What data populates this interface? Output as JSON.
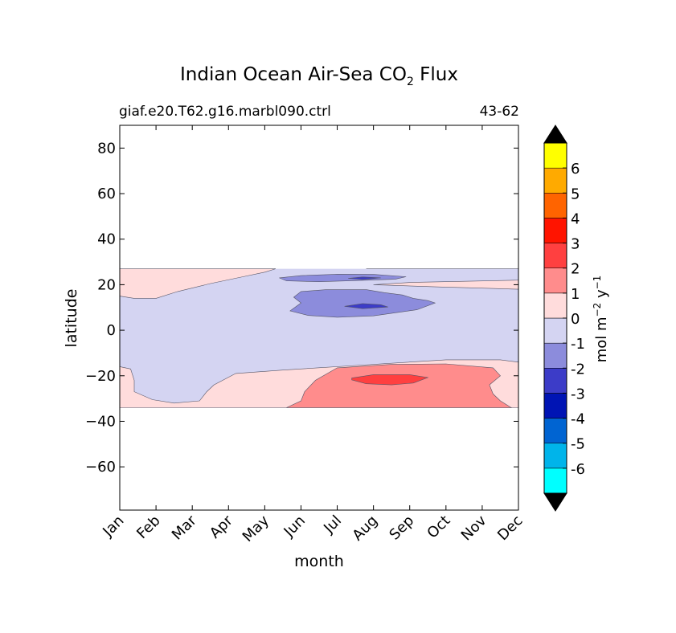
{
  "chart_data": {
    "type": "heatmap",
    "title_main": "Indian Ocean Air-Sea CO",
    "title_sub": "2",
    "title_tail": " Flux",
    "subtitle_left": "giaf.e20.T62.g16.marbl090.ctrl",
    "subtitle_right": "43-62",
    "xlabel": "month",
    "ylabel": "latitude",
    "x_ticks": [
      "Jan",
      "Feb",
      "Mar",
      "Apr",
      "May",
      "Jun",
      "Jul",
      "Aug",
      "Sep",
      "Oct",
      "Nov",
      "Dec"
    ],
    "x_range": [
      1,
      12
    ],
    "y_ticks": [
      80,
      60,
      40,
      20,
      0,
      -20,
      -40,
      -60
    ],
    "y_tick_labels": [
      "80",
      "60",
      "40",
      "20",
      "0",
      "−20",
      "−40",
      "−60"
    ],
    "ylim": [
      -79,
      90
    ],
    "data_lat_range": [
      -34,
      27
    ],
    "colorbar": {
      "label_main": "mol m",
      "label_exp1": "−2",
      "label_mid": "  y",
      "label_exp2": "−1",
      "extend": "both",
      "extend_color": "#000000",
      "levels": [
        -7,
        -6,
        -5,
        -4,
        -3,
        -2,
        -1,
        0,
        1,
        2,
        3,
        4,
        5,
        6,
        7
      ],
      "tick_labels": [
        "-6",
        "-5",
        "-4",
        "-3",
        "-2",
        "-1",
        "0",
        "1",
        "2",
        "3",
        "4",
        "5",
        "6"
      ],
      "tick_values": [
        -6,
        -5,
        -4,
        -3,
        -2,
        -1,
        0,
        1,
        2,
        3,
        4,
        5,
        6
      ],
      "colors": [
        "#00ffff",
        "#00b4ea",
        "#0064d2",
        "#0014b4",
        "#3c3cc8",
        "#8c8cdc",
        "#d4d4f2",
        "#ffdcdc",
        "#ff8c8c",
        "#ff4040",
        "#ff1400",
        "#ff6400",
        "#ffaa00",
        "#ffff00"
      ]
    },
    "regions": [
      {
        "level": "-1 to 0",
        "color": "#d4d4f2",
        "points": [
          [
            1,
            -34
          ],
          [
            12,
            -34
          ],
          [
            12,
            27
          ],
          [
            1,
            27
          ]
        ]
      },
      {
        "level": "0 to 1",
        "color": "#ffdcdc",
        "points": [
          [
            1,
            27
          ],
          [
            5.3,
            27
          ],
          [
            5,
            25.5
          ],
          [
            4.4,
            23.5
          ],
          [
            3.5,
            20.5
          ],
          [
            2.6,
            17
          ],
          [
            2,
            14
          ],
          [
            1.4,
            14
          ],
          [
            1,
            15
          ],
          [
            1,
            27
          ]
        ]
      },
      {
        "level": "0 to 1",
        "color": "#ffdcdc",
        "points": [
          [
            7.8,
            27
          ],
          [
            12,
            27
          ],
          [
            12,
            22
          ],
          [
            10.5,
            21.5
          ],
          [
            9,
            21
          ],
          [
            8,
            20
          ],
          [
            9.8,
            19
          ],
          [
            11,
            18.5
          ],
          [
            12,
            18
          ],
          [
            12,
            27
          ]
        ]
      },
      {
        "level": "0 to 1",
        "color": "#ffdcdc",
        "points": [
          [
            1,
            -16
          ],
          [
            1.3,
            -17
          ],
          [
            1.4,
            -22
          ],
          [
            1.4,
            -27
          ],
          [
            1.9,
            -30.5
          ],
          [
            2.5,
            -32
          ],
          [
            3.2,
            -31
          ],
          [
            3.4,
            -27
          ],
          [
            3.6,
            -24
          ],
          [
            4.2,
            -19
          ],
          [
            5.5,
            -17.5
          ],
          [
            7.5,
            -15.5
          ],
          [
            10,
            -13
          ],
          [
            11.5,
            -13
          ],
          [
            12,
            -14
          ],
          [
            12,
            -34
          ],
          [
            1,
            -34
          ],
          [
            1,
            -16
          ]
        ]
      },
      {
        "level": "1 to 2",
        "color": "#ff8c8c",
        "points": [
          [
            5.6,
            -34
          ],
          [
            6,
            -31
          ],
          [
            6.1,
            -27
          ],
          [
            6.4,
            -22
          ],
          [
            7,
            -16.5
          ],
          [
            8.5,
            -15
          ],
          [
            10,
            -14.8
          ],
          [
            11.3,
            -16.5
          ],
          [
            11.5,
            -20
          ],
          [
            11.2,
            -24
          ],
          [
            11.3,
            -28
          ],
          [
            11.5,
            -31
          ],
          [
            11.8,
            -34
          ]
        ]
      },
      {
        "level": "2 to 3",
        "color": "#ff4040",
        "points": [
          [
            7.4,
            -21
          ],
          [
            8,
            -19.5
          ],
          [
            9,
            -19.5
          ],
          [
            9.5,
            -20.8
          ],
          [
            9.1,
            -23.2
          ],
          [
            8.5,
            -24
          ],
          [
            7.8,
            -23.5
          ],
          [
            7.4,
            -21.8
          ]
        ]
      },
      {
        "level": "-2 to -1",
        "color": "#8c8cdc",
        "points": [
          [
            5.4,
            23
          ],
          [
            6,
            24
          ],
          [
            7,
            24.6
          ],
          [
            8,
            24.5
          ],
          [
            8.9,
            23.5
          ],
          [
            8.6,
            22.4
          ],
          [
            7.5,
            21.8
          ],
          [
            6.5,
            21.3
          ],
          [
            5.6,
            21.7
          ],
          [
            5.4,
            23
          ]
        ]
      },
      {
        "level": "-2 to -1",
        "color": "#8c8cdc",
        "points": [
          [
            6,
            17
          ],
          [
            6.7,
            17.8
          ],
          [
            7.8,
            17.8
          ],
          [
            8.3,
            16.5
          ],
          [
            8.8,
            15.5
          ],
          [
            9.1,
            14
          ],
          [
            9.5,
            13
          ],
          [
            9.7,
            12
          ],
          [
            9.2,
            9
          ],
          [
            8,
            6.3
          ],
          [
            7,
            5.7
          ],
          [
            6.2,
            6.5
          ],
          [
            5.7,
            8.5
          ],
          [
            6,
            12
          ],
          [
            5.8,
            14.5
          ],
          [
            6,
            17
          ]
        ]
      },
      {
        "level": "-3 to -2",
        "color": "#3c3cc8",
        "points": [
          [
            7.2,
            10.5
          ],
          [
            7.7,
            11.7
          ],
          [
            8.2,
            11.2
          ],
          [
            8.4,
            10.2
          ],
          [
            7.7,
            9.5
          ],
          [
            7.2,
            10.5
          ]
        ]
      },
      {
        "level": "-3 to -2",
        "color": "#3c3cc8",
        "points": [
          [
            7.3,
            22.8
          ],
          [
            7.7,
            23.4
          ],
          [
            8.2,
            23
          ],
          [
            7.7,
            22.3
          ],
          [
            7.3,
            22.8
          ]
        ]
      }
    ]
  }
}
